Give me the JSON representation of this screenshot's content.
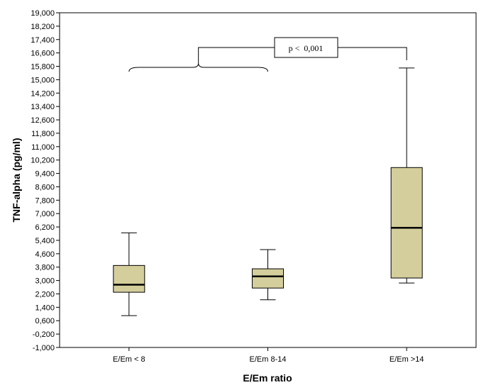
{
  "chart_data": {
    "type": "box",
    "xlabel": "E/Em ratio",
    "ylabel": "TNF-alpha (pg/ml)",
    "ylim": [
      -1.0,
      19.0
    ],
    "yticks": [
      -1.0,
      -0.2,
      0.6,
      1.4,
      2.2,
      3.0,
      3.8,
      4.6,
      5.4,
      6.2,
      7.0,
      7.8,
      8.6,
      9.4,
      10.2,
      11.0,
      11.8,
      12.6,
      13.4,
      14.2,
      15.0,
      15.8,
      16.6,
      17.4,
      18.2,
      19.0
    ],
    "ytick_labels": [
      "-1,000",
      "-0,200",
      "0,600",
      "1,400",
      "2,200",
      "3,000",
      "3,800",
      "4,600",
      "5,400",
      "6,200",
      "7,000",
      "7,800",
      "8,600",
      "9,400",
      "10,200",
      "11,000",
      "11,800",
      "12,600",
      "13,400",
      "14,200",
      "15,000",
      "15,800",
      "16,600",
      "17,400",
      "18,200",
      "19,000"
    ],
    "categories": [
      "E/Em < 8",
      "E/Em 8-14",
      "E/Em >14"
    ],
    "boxes": [
      {
        "category": "E/Em < 8",
        "min": 0.9,
        "q1": 2.3,
        "median": 2.75,
        "q3": 3.9,
        "max": 5.85
      },
      {
        "category": "E/Em 8-14",
        "min": 1.85,
        "q1": 2.55,
        "median": 3.25,
        "q3": 3.7,
        "max": 4.85
      },
      {
        "category": "E/Em >14",
        "min": 2.85,
        "q1": 3.15,
        "median": 6.15,
        "q3": 9.75,
        "max": 15.7
      }
    ],
    "annotation": {
      "text": "p <  0,001"
    },
    "colors": {
      "box_fill": "#d4ce9c",
      "stroke": "#000000",
      "background": "#ffffff"
    }
  }
}
